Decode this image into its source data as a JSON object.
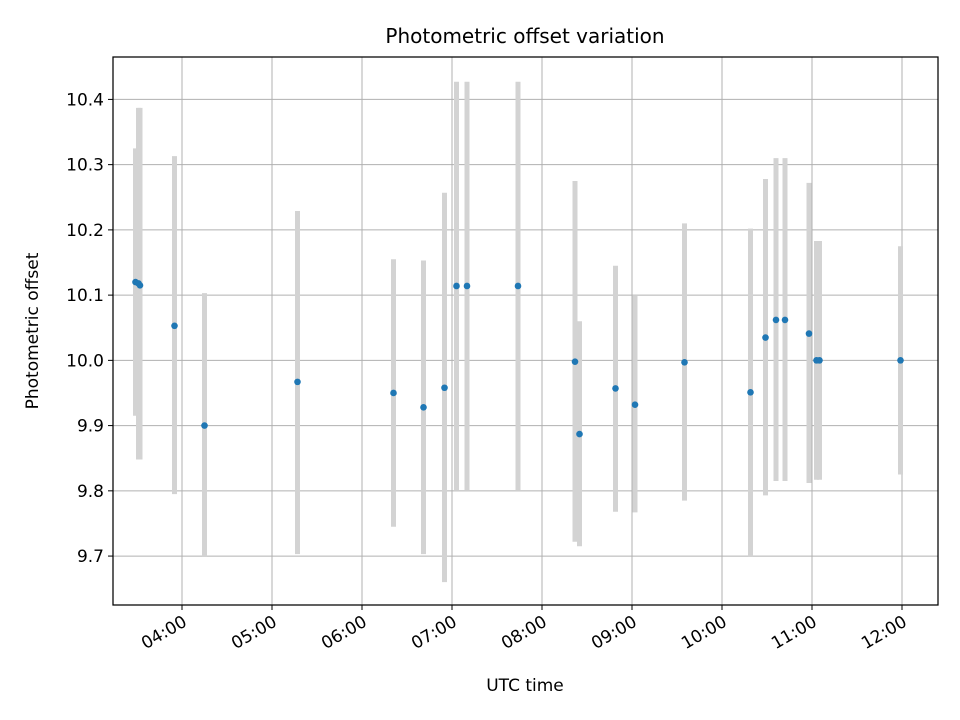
{
  "chart_data": {
    "type": "scatter",
    "title": "Photometric offset variation",
    "xlabel": "UTC time",
    "ylabel": "Photometric offset",
    "x_axis_kind": "time",
    "xlim": [
      "03:14",
      "12:24"
    ],
    "ylim": [
      9.625,
      10.465
    ],
    "grid": true,
    "x_ticks": [
      "04:00",
      "05:00",
      "06:00",
      "07:00",
      "08:00",
      "09:00",
      "10:00",
      "11:00",
      "12:00"
    ],
    "y_ticks": [
      "9.7",
      "9.8",
      "9.9",
      "10.0",
      "10.1",
      "10.2",
      "10.3",
      "10.4"
    ],
    "point_color": "#1f77b4",
    "errorbar_color": "#d3d3d3",
    "points": [
      {
        "x": "03:29",
        "y": 10.12,
        "ylo": 9.915,
        "yhi": 10.325
      },
      {
        "x": "03:31",
        "y": 10.118,
        "ylo": 9.848,
        "yhi": 10.387
      },
      {
        "x": "03:32",
        "y": 10.115,
        "ylo": 9.848,
        "yhi": 10.387
      },
      {
        "x": "03:55",
        "y": 10.053,
        "ylo": 9.795,
        "yhi": 10.313
      },
      {
        "x": "04:15",
        "y": 9.9,
        "ylo": 9.7,
        "yhi": 10.103
      },
      {
        "x": "05:17",
        "y": 9.967,
        "ylo": 9.703,
        "yhi": 10.229
      },
      {
        "x": "06:21",
        "y": 9.95,
        "ylo": 9.745,
        "yhi": 10.155
      },
      {
        "x": "06:41",
        "y": 9.928,
        "ylo": 9.703,
        "yhi": 10.153
      },
      {
        "x": "06:55",
        "y": 9.958,
        "ylo": 9.66,
        "yhi": 10.257
      },
      {
        "x": "07:03",
        "y": 10.114,
        "ylo": 9.8,
        "yhi": 10.427
      },
      {
        "x": "07:10",
        "y": 10.114,
        "ylo": 9.8,
        "yhi": 10.427
      },
      {
        "x": "07:44",
        "y": 10.114,
        "ylo": 9.8,
        "yhi": 10.427
      },
      {
        "x": "08:22",
        "y": 9.998,
        "ylo": 9.722,
        "yhi": 10.275
      },
      {
        "x": "08:25",
        "y": 9.887,
        "ylo": 9.715,
        "yhi": 10.06
      },
      {
        "x": "08:49",
        "y": 9.957,
        "ylo": 9.768,
        "yhi": 10.145
      },
      {
        "x": "09:02",
        "y": 9.932,
        "ylo": 9.767,
        "yhi": 10.1
      },
      {
        "x": "09:35",
        "y": 9.997,
        "ylo": 9.785,
        "yhi": 10.21
      },
      {
        "x": "10:19",
        "y": 9.951,
        "ylo": 9.7,
        "yhi": 10.202
      },
      {
        "x": "10:29",
        "y": 10.035,
        "ylo": 9.793,
        "yhi": 10.278
      },
      {
        "x": "10:36",
        "y": 10.062,
        "ylo": 9.815,
        "yhi": 10.31
      },
      {
        "x": "10:42",
        "y": 10.062,
        "ylo": 9.815,
        "yhi": 10.31
      },
      {
        "x": "10:58",
        "y": 10.041,
        "ylo": 9.812,
        "yhi": 10.272
      },
      {
        "x": "11:03",
        "y": 10.0,
        "ylo": 9.817,
        "yhi": 10.183
      },
      {
        "x": "11:05",
        "y": 10.0,
        "ylo": 9.817,
        "yhi": 10.183
      },
      {
        "x": "11:59",
        "y": 10.0,
        "ylo": 9.825,
        "yhi": 10.175
      }
    ]
  }
}
